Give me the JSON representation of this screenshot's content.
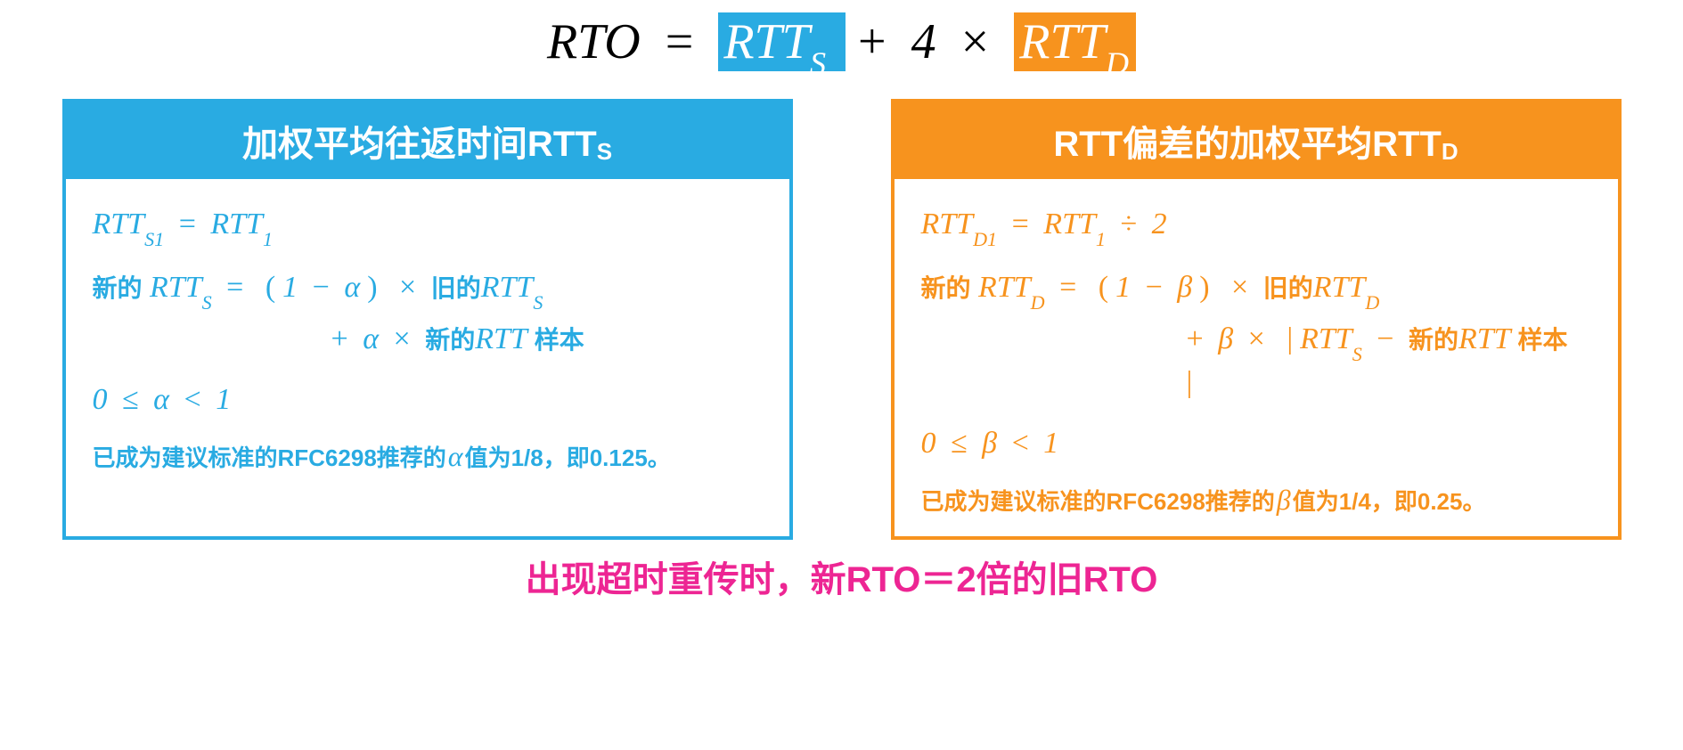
{
  "colors": {
    "blue": "#29abe2",
    "orange": "#f7931e",
    "pink": "#ed2593",
    "black": "#000000",
    "white": "#ffffff"
  },
  "top_formula": {
    "lhs": "RTO",
    "eq": "=",
    "term1_base": "RTT",
    "term1_sub": "S",
    "plus": "+",
    "coef": "4",
    "times": "×",
    "term2_base": "RTT",
    "term2_sub": "D"
  },
  "left": {
    "title_prefix": "加权平均往返时间RTT",
    "title_sub": "S",
    "line1": {
      "lhs_base": "RTT",
      "lhs_sub": "S1",
      "eq": "=",
      "rhs_base": "RTT",
      "rhs_sub": "1"
    },
    "line2": {
      "new": "新的",
      "lhs_base": "RTT",
      "lhs_sub": "S",
      "eq": "=",
      "lp": "(",
      "one": "1",
      "minus": "−",
      "alpha": "α",
      "rp": ")",
      "times": "×",
      "old": "旧的",
      "rhs_base": "RTT",
      "rhs_sub": "S"
    },
    "line3": {
      "plus": "+",
      "alpha": "α",
      "times": "×",
      "new": "新的",
      "rtt": "RTT",
      "sample": "样本"
    },
    "range": {
      "zero": "0",
      "le": "≤",
      "alpha": "α",
      "lt": "<",
      "one": "1"
    },
    "note_pre": "已成为建议标准的RFC6298推荐的",
    "note_greek": "α",
    "note_post": "值为1/8，即0.125。"
  },
  "right": {
    "title_prefix": "RTT偏差的加权平均RTT",
    "title_sub": "D",
    "line1": {
      "lhs_base": "RTT",
      "lhs_sub": "D1",
      "eq": "=",
      "rhs_base": "RTT",
      "rhs_sub": "1",
      "div": "÷",
      "two": "2"
    },
    "line2": {
      "new": "新的",
      "lhs_base": "RTT",
      "lhs_sub": "D",
      "eq": "=",
      "lp": "(",
      "one": "1",
      "minus": "−",
      "beta": "β",
      "rp": ")",
      "times": "×",
      "old": "旧的",
      "rhs_base": "RTT",
      "rhs_sub": "D"
    },
    "line3": {
      "plus": "+",
      "beta": "β",
      "times": "×",
      "bar1": "|",
      "rtts_base": "RTT",
      "rtts_sub": "S",
      "minus": "−",
      "new": "新的",
      "rtt": "RTT",
      "sample": "样本",
      "bar2": "|"
    },
    "range": {
      "zero": "0",
      "le": "≤",
      "beta": "β",
      "lt": "<",
      "one": "1"
    },
    "note_pre": "已成为建议标准的RFC6298推荐的",
    "note_greek": "β",
    "note_post": "值为1/4，即0.25。"
  },
  "footer": "出现超时重传时，新RTO＝2倍的旧RTO"
}
